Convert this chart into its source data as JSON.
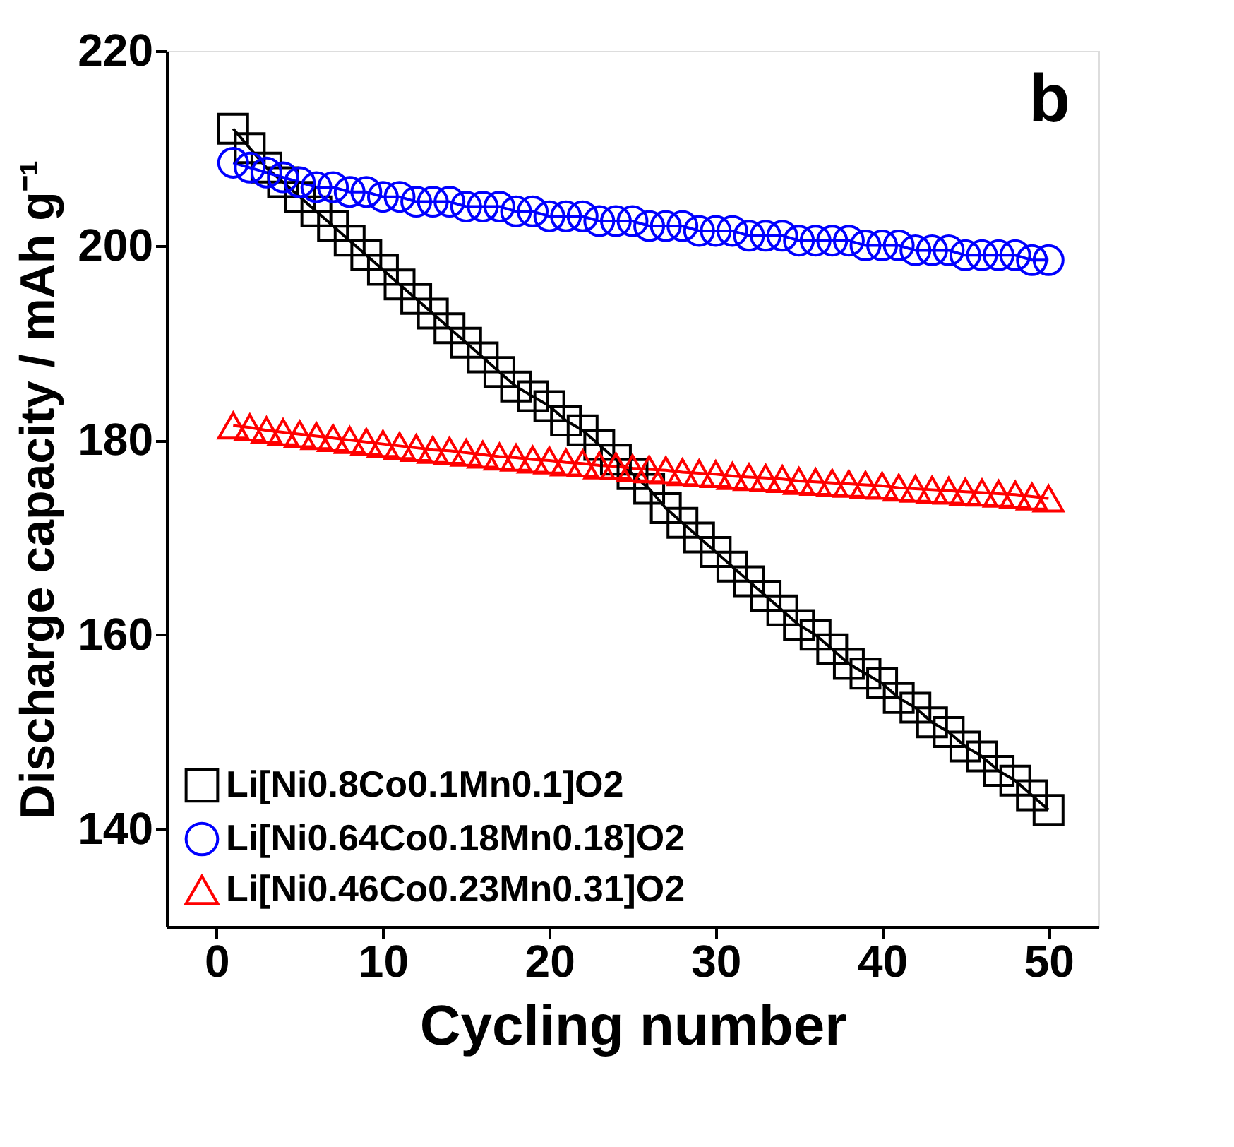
{
  "chart_data": {
    "type": "line",
    "xlabel": "Cycling number",
    "ylabel": "Discharge capacity / mAh g⁻¹",
    "x": [
      1,
      2,
      3,
      4,
      5,
      6,
      7,
      8,
      9,
      10,
      11,
      12,
      13,
      14,
      15,
      16,
      17,
      18,
      19,
      20,
      21,
      22,
      23,
      24,
      25,
      26,
      27,
      28,
      29,
      30,
      31,
      32,
      33,
      34,
      35,
      36,
      37,
      38,
      39,
      40,
      41,
      42,
      43,
      44,
      45,
      46,
      47,
      48,
      49,
      50
    ],
    "series": [
      {
        "name": "Li[Ni0.8Co0.1Mn0.1]O2",
        "color": "#000000",
        "marker": "square",
        "values": [
          212,
          210,
          208,
          206.5,
          205,
          203.5,
          202,
          200.5,
          199,
          197.5,
          196,
          194.5,
          193,
          191.5,
          190,
          188.5,
          187,
          185.5,
          184.5,
          183.5,
          182,
          181,
          179.5,
          178,
          176.5,
          175,
          173,
          171.5,
          170,
          168.5,
          167,
          165.5,
          164,
          162.5,
          161,
          160,
          158.5,
          157,
          156,
          155,
          153.5,
          152.5,
          151,
          150,
          148.5,
          147.5,
          146,
          145,
          143.5,
          142
        ]
      },
      {
        "name": "Li[Ni0.64Co0.18Mn0.18]O2",
        "color": "#0000ff",
        "marker": "circle",
        "values": [
          208.5,
          208,
          207.5,
          207,
          206.5,
          206,
          206,
          205.5,
          205.5,
          205,
          205,
          204.5,
          204.5,
          204.5,
          204,
          204,
          204,
          203.5,
          203.5,
          203,
          203,
          203,
          202.5,
          202.5,
          202.5,
          202,
          202,
          202,
          201.5,
          201.5,
          201.5,
          201,
          201,
          201,
          200.5,
          200.5,
          200.5,
          200.5,
          200,
          200,
          200,
          199.5,
          199.5,
          199.5,
          199,
          199,
          199,
          199,
          198.5,
          198.5
        ]
      },
      {
        "name": "Li[Ni0.46Co0.23Mn0.31]O2",
        "color": "#ff0000",
        "marker": "triangle",
        "values": [
          181.5,
          181.3,
          181,
          180.8,
          180.6,
          180.4,
          180.2,
          180,
          179.8,
          179.6,
          179.4,
          179.2,
          179,
          178.9,
          178.7,
          178.5,
          178.3,
          178.2,
          178,
          177.9,
          177.7,
          177.6,
          177.4,
          177.3,
          177.1,
          177,
          176.9,
          176.7,
          176.6,
          176.5,
          176.3,
          176.2,
          176.1,
          176,
          175.8,
          175.7,
          175.6,
          175.5,
          175.4,
          175.3,
          175.1,
          175,
          174.9,
          174.8,
          174.7,
          174.6,
          174.5,
          174.4,
          174.2,
          174
        ]
      }
    ],
    "xlim": [
      -3,
      53
    ],
    "xticks": [
      0,
      10,
      20,
      30,
      40,
      50
    ],
    "ylim": [
      130,
      220
    ],
    "yticks": [
      140,
      160,
      180,
      200,
      220
    ],
    "grid": false,
    "legend": "bottom left",
    "annotations": [
      "b"
    ]
  }
}
